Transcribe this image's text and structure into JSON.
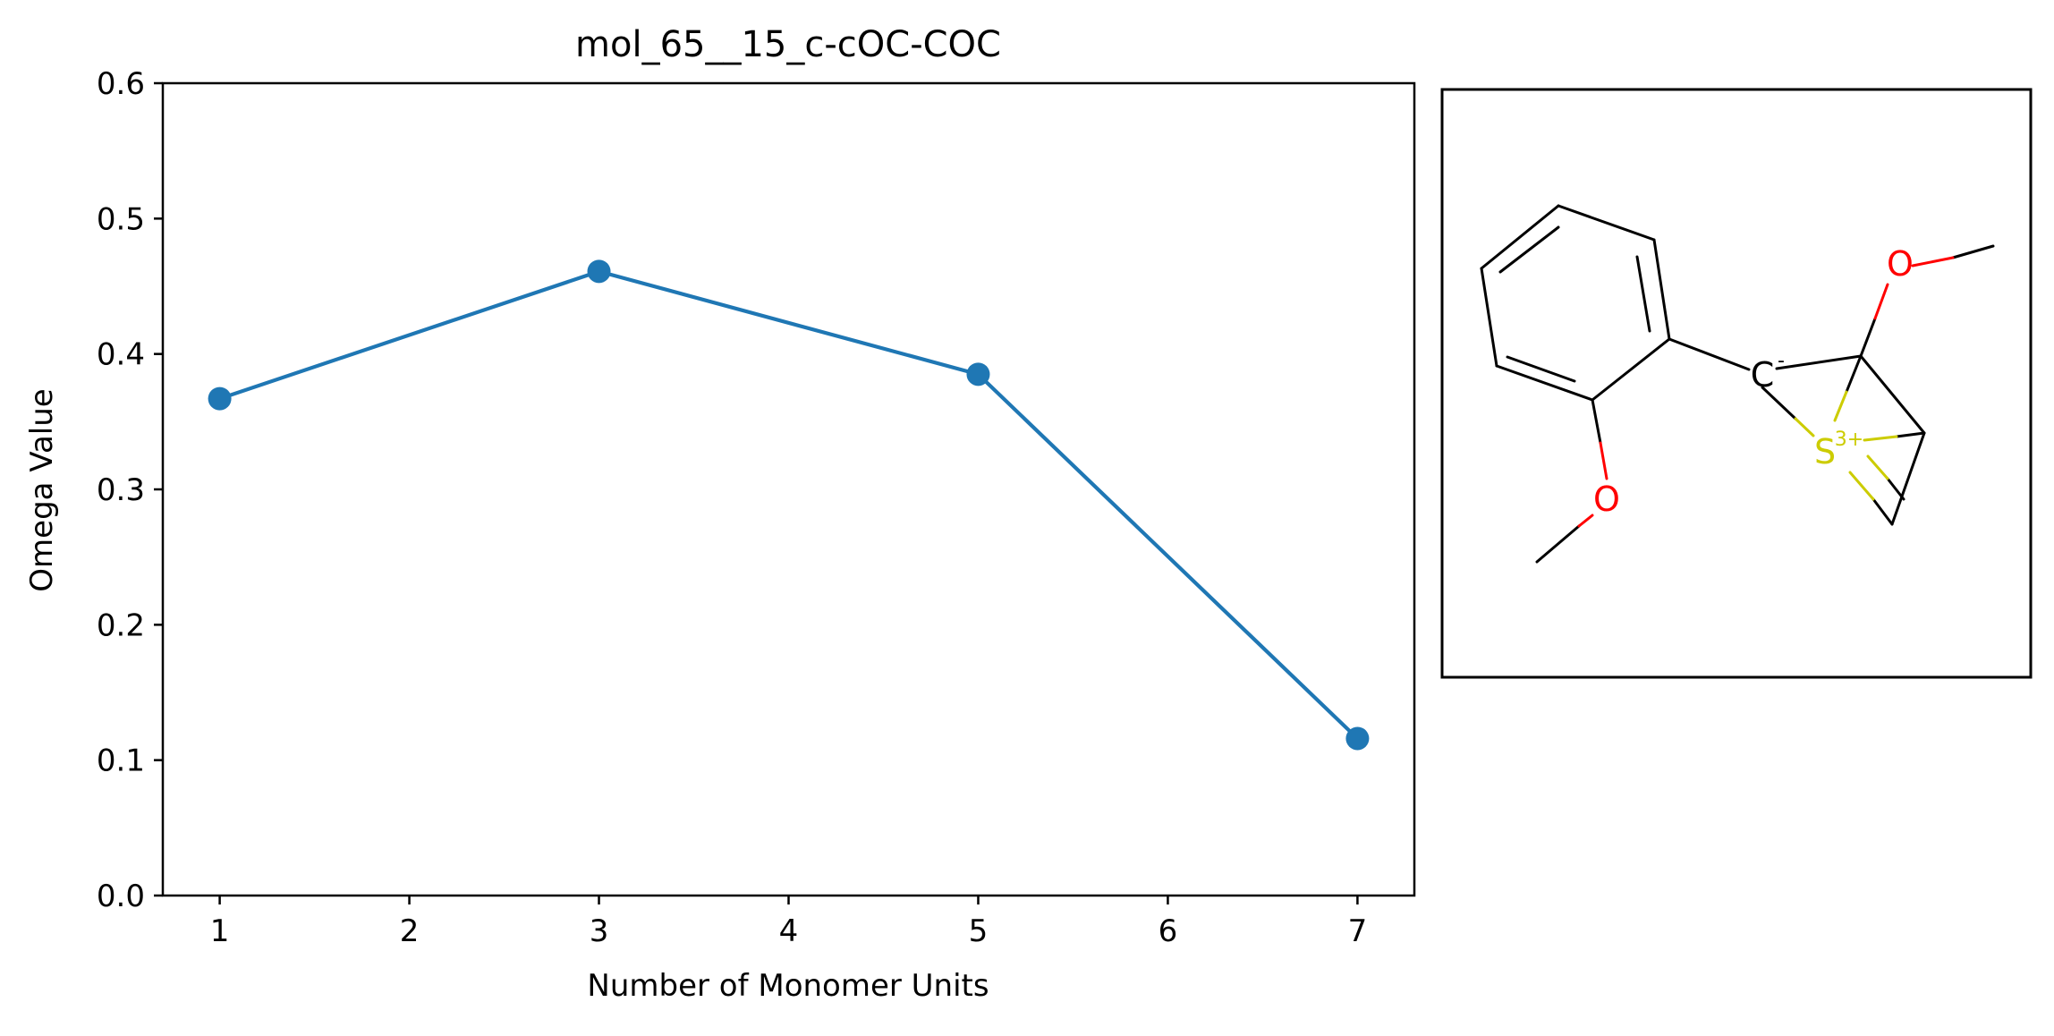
{
  "chart_data": {
    "type": "line",
    "title": "mol_65__15_c-cOC-COC",
    "xlabel": "Number of Monomer Units",
    "ylabel": "Omega Value",
    "x": [
      1,
      3,
      5,
      7
    ],
    "series": [
      {
        "values": [
          0.367,
          0.461,
          0.385,
          0.116
        ],
        "color": "#1f77b4"
      }
    ],
    "xlim": [
      0.7,
      7.3
    ],
    "ylim": [
      0.0,
      0.6
    ],
    "xticks": [
      "1",
      "2",
      "3",
      "4",
      "5",
      "6",
      "7"
    ],
    "yticks": [
      "0.0",
      "0.1",
      "0.2",
      "0.3",
      "0.4",
      "0.5",
      "0.6"
    ],
    "grid": false,
    "legend": "none"
  },
  "molecule": {
    "atom_labels": {
      "carbanion": "C",
      "carbanion_charge": "-",
      "sulfur": "S",
      "sulfur_charge": "3+",
      "oxygen_top": "O",
      "oxygen_bottom": "O"
    },
    "colors": {
      "bond": "#000000",
      "oxygen": "#ff0000",
      "sulfur": "#cccc00"
    }
  }
}
